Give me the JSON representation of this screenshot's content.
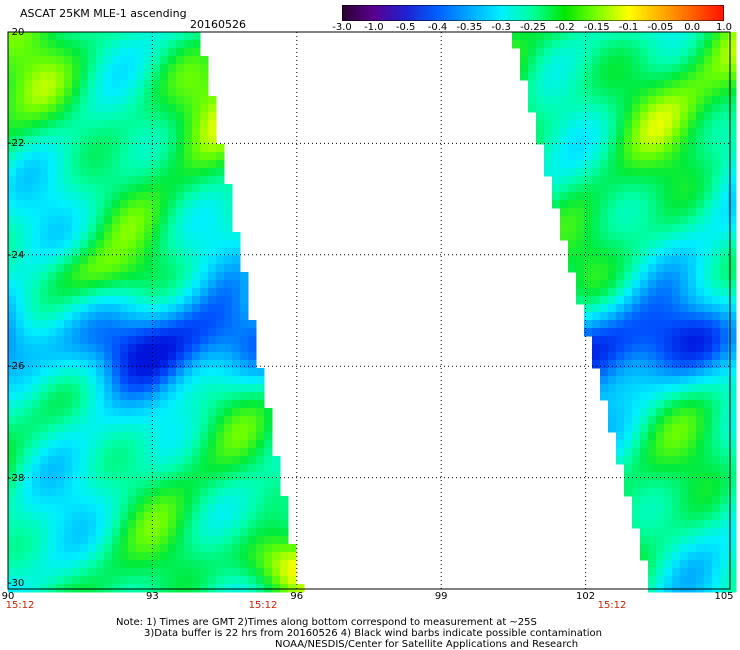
{
  "header": {
    "title": "ASCAT 25KM MLE-1 ascending",
    "date": "20160526"
  },
  "colorbar": {
    "labels": [
      "-3.0",
      "-1.0",
      "-0.5",
      "-0.4",
      "-0.35",
      "-0.3",
      "-0.25",
      "-0.2",
      "-0.15",
      "-0.1",
      "-0.05",
      "0.0",
      "1.0"
    ],
    "colors": [
      "#2a0030",
      "#5a0090",
      "#2020d0",
      "#0060ff",
      "#00a8ff",
      "#00f0ff",
      "#00ff9a",
      "#00e800",
      "#7aff00",
      "#ffff00",
      "#ffb000",
      "#ff6000",
      "#ff1000"
    ]
  },
  "map": {
    "lat_labels": [
      "-20",
      "-22",
      "-24",
      "-26",
      "-28",
      "-30"
    ],
    "lon_labels": [
      "90",
      "93",
      "96",
      "99",
      "102",
      "105"
    ],
    "time_labels": [
      "15:12",
      "15:12",
      "15:12"
    ],
    "lat_range": [
      -30,
      -20
    ],
    "lon_range": [
      90,
      105
    ]
  },
  "notes": {
    "line1": "Note: 1) Times are GMT 2)Times along bottom correspond to measurement at ~25S",
    "line2": "3)Data buffer is 22 hrs from 20160526 4) Black wind barbs indicate possible contamination",
    "line3": "NOAA/NESDIS/Center for Satellite Applications and Research"
  }
}
